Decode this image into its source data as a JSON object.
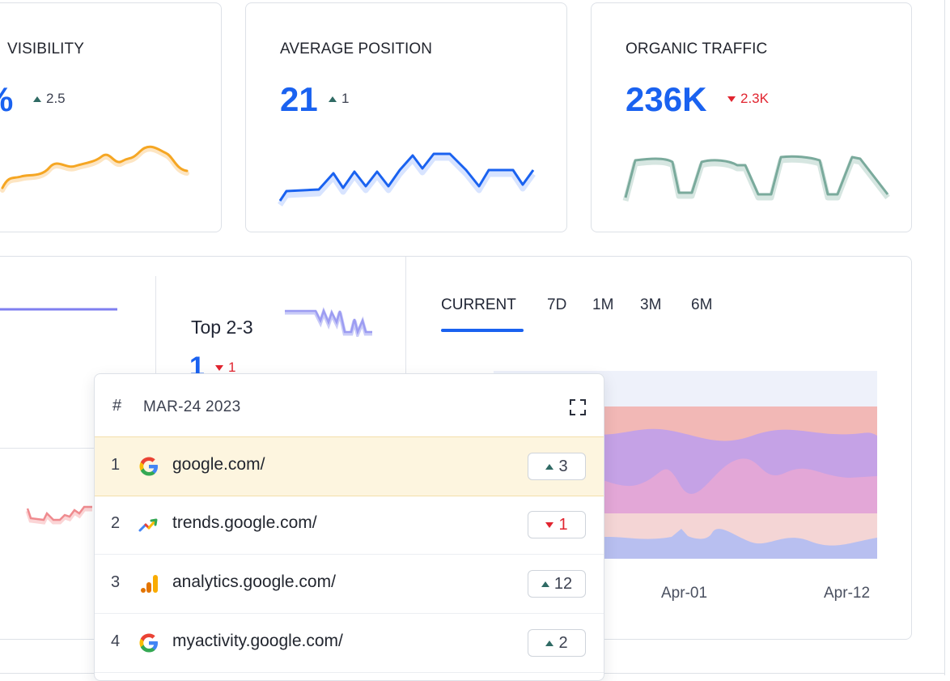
{
  "metrics": [
    {
      "title": "VISIBILITY",
      "value": "%",
      "delta": "2.5",
      "direction": "up",
      "color": "#f5a623"
    },
    {
      "title": "AVERAGE POSITION",
      "value": "21",
      "delta": "1",
      "direction": "up",
      "color": "#1a62f0"
    },
    {
      "title": "ORGANIC TRAFFIC",
      "value": "236K",
      "delta": "2.3K",
      "direction": "down",
      "color": "#7aaa9c"
    }
  ],
  "distribution": {
    "label": "Top 2-3",
    "value": "1",
    "delta": "1",
    "direction": "down"
  },
  "tabs": [
    {
      "label": "CURRENT",
      "active": true
    },
    {
      "label": "7D",
      "active": false
    },
    {
      "label": "1M",
      "active": false
    },
    {
      "label": "3M",
      "active": false
    },
    {
      "label": "6M",
      "active": false
    }
  ],
  "chart_data": {
    "type": "area",
    "x_tick_labels": [
      "Apr-01",
      "Apr-12"
    ]
  },
  "popup": {
    "hash": "#",
    "date": "MAR-24 2023",
    "rows": [
      {
        "rank": "1",
        "icon": "google-icon",
        "url": "google.com/",
        "change": "3",
        "direction": "up"
      },
      {
        "rank": "2",
        "icon": "trends-icon",
        "url": "trends.google.com/",
        "change": "1",
        "direction": "down"
      },
      {
        "rank": "3",
        "icon": "analytics-icon",
        "url": "analytics.google.com/",
        "change": "12",
        "direction": "up"
      },
      {
        "rank": "4",
        "icon": "google-icon",
        "url": "myactivity.google.com/",
        "change": "2",
        "direction": "up"
      }
    ]
  },
  "colors": {
    "accent": "#1a62f0",
    "up": "#2f6a64",
    "down": "#e1242f",
    "highlight_row": "#fdf5df"
  }
}
